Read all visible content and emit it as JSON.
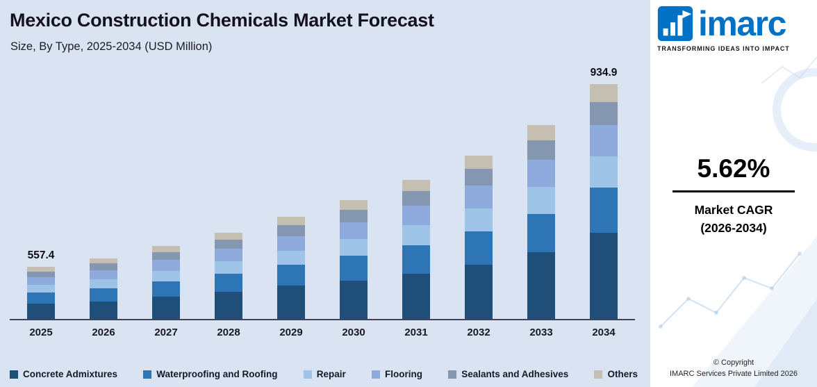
{
  "header": {
    "title": "Mexico Construction Chemicals Market Forecast",
    "subtitle": "Size, By Type, 2025-2034 (USD Million)"
  },
  "sidebar": {
    "logo_text": "imarc",
    "tagline": "TRANSFORMING IDEAS INTO IMPACT",
    "brand_blue": "#0072c6",
    "cagr_value": "5.62%",
    "cagr_label_line1": "Market CAGR",
    "cagr_label_line2": "(2026-2034)",
    "copyright_line1": "© Copyright",
    "copyright_line2": "IMARC Services Private Limited 2026"
  },
  "chart_data": {
    "type": "bar",
    "stacked": true,
    "title": "Mexico Construction Chemicals Market Forecast",
    "subtitle": "Size, By Type, 2025-2034 (USD Million)",
    "unit": "USD Million",
    "background": "#dae3f1",
    "grid": false,
    "legend_position": "bottom",
    "ylim": [
      450,
      970
    ],
    "categories": [
      "2025",
      "2026",
      "2027",
      "2028",
      "2029",
      "2030",
      "2031",
      "2032",
      "2033",
      "2034"
    ],
    "totals": [
      557.4,
      575.0,
      600.0,
      628.0,
      660.0,
      695.0,
      737.0,
      787.0,
      850.0,
      934.9
    ],
    "value_labels": {
      "2025": "557.4",
      "2034": "934.9"
    },
    "series": [
      {
        "name": "Concrete Admixtures",
        "color": "#1f4e79",
        "values": [
          481.0,
          485.8,
          495.9,
          506.5,
          518.2,
          529.5,
          543.9,
          561.6,
          586.9,
          627.9
        ]
      },
      {
        "name": "Waterproofing and Roofing",
        "color": "#2e75b6",
        "values": [
          23.2,
          27.1,
          31.6,
          36.9,
          43.1,
          50.3,
          58.7,
          68.5,
          80.0,
          93.3
        ]
      },
      {
        "name": "Repair",
        "color": "#9dc3e6",
        "values": [
          16.0,
          18.7,
          21.9,
          25.5,
          29.8,
          34.8,
          40.6,
          47.3,
          55.3,
          64.5
        ]
      },
      {
        "name": "Flooring",
        "color": "#8faadc",
        "values": [
          16.0,
          18.7,
          21.9,
          25.5,
          29.8,
          34.8,
          40.6,
          47.3,
          55.3,
          64.5
        ]
      },
      {
        "name": "Sealants and Adhesives",
        "color": "#8496b0",
        "values": [
          11.8,
          13.8,
          16.1,
          18.8,
          22.0,
          25.7,
          29.9,
          34.9,
          40.8,
          47.6
        ]
      },
      {
        "name": "Others",
        "color": "#c5bfb1",
        "values": [
          9.4,
          10.9,
          12.6,
          14.8,
          17.1,
          19.9,
          23.3,
          27.4,
          31.7,
          37.1
        ]
      }
    ]
  }
}
